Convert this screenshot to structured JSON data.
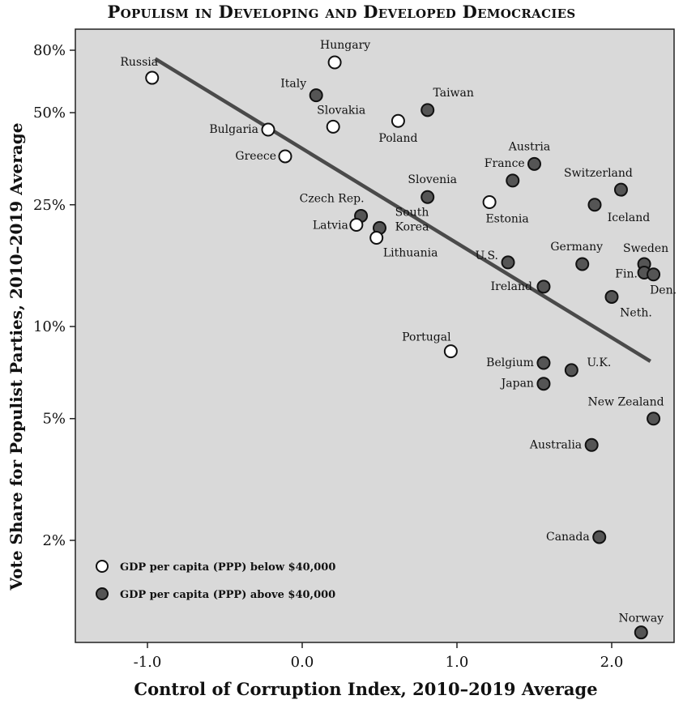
{
  "chart_data": {
    "type": "scatter",
    "title": "Populism in Developing and Developed Democracies",
    "xlabel": "Control of Corruption Index, 2010–2019 Average",
    "ylabel": "Vote Share for Populist Parties, 2010–2019 Average",
    "x_ticks": [
      {
        "value": -1.0,
        "label": "-1.0"
      },
      {
        "value": 0.0,
        "label": "0.0"
      },
      {
        "value": 1.0,
        "label": "1.0"
      },
      {
        "value": 2.0,
        "label": "2.0"
      }
    ],
    "y_scale": "log",
    "y_ticks": [
      {
        "value": 2,
        "label": "2%"
      },
      {
        "value": 5,
        "label": "5%"
      },
      {
        "value": 10,
        "label": "10%"
      },
      {
        "value": 25,
        "label": "25%"
      },
      {
        "value": 50,
        "label": "50%"
      },
      {
        "value": 80,
        "label": "80%"
      }
    ],
    "legend": [
      {
        "name": "GDP per capita (PPP) below $40,000",
        "color": "#ffffff"
      },
      {
        "name": "GDP per capita (PPP) above $40,000",
        "color": "#555555"
      }
    ],
    "legend_position": "bottom-left",
    "trend_line": {
      "x1": -0.95,
      "y1": 75,
      "x2": 2.25,
      "y2": 7.7
    },
    "points": [
      {
        "name": "Russia",
        "x": -0.97,
        "y": 65,
        "group": "below"
      },
      {
        "name": "Hungary",
        "x": 0.21,
        "y": 73,
        "group": "below"
      },
      {
        "name": "Italy",
        "x": 0.09,
        "y": 57,
        "group": "above"
      },
      {
        "name": "Taiwan",
        "x": 0.81,
        "y": 51,
        "group": "above"
      },
      {
        "name": "Slovakia",
        "x": 0.2,
        "y": 45,
        "group": "below"
      },
      {
        "name": "Bulgaria",
        "x": -0.22,
        "y": 44,
        "group": "below"
      },
      {
        "name": "Poland",
        "x": 0.62,
        "y": 47,
        "group": "below"
      },
      {
        "name": "Greece",
        "x": -0.11,
        "y": 36,
        "group": "below"
      },
      {
        "name": "Austria",
        "x": 1.5,
        "y": 34,
        "group": "above"
      },
      {
        "name": "France",
        "x": 1.36,
        "y": 30,
        "group": "above"
      },
      {
        "name": "Switzerland",
        "x": 2.06,
        "y": 28,
        "group": "above"
      },
      {
        "name": "Slovenia",
        "x": 0.81,
        "y": 26.5,
        "group": "above"
      },
      {
        "name": "Estonia",
        "x": 1.21,
        "y": 25.5,
        "group": "below"
      },
      {
        "name": "Iceland",
        "x": 1.89,
        "y": 25,
        "group": "above"
      },
      {
        "name": "Czech Rep.",
        "x": 0.38,
        "y": 23,
        "group": "above"
      },
      {
        "name": "South Korea",
        "x": 0.5,
        "y": 21,
        "group": "above"
      },
      {
        "name": "Latvia",
        "x": 0.35,
        "y": 21.5,
        "group": "below"
      },
      {
        "name": "Lithuania",
        "x": 0.48,
        "y": 19.5,
        "group": "below"
      },
      {
        "name": "U.S.",
        "x": 1.33,
        "y": 16.2,
        "group": "above"
      },
      {
        "name": "Germany",
        "x": 1.81,
        "y": 16,
        "group": "above"
      },
      {
        "name": "Sweden",
        "x": 2.21,
        "y": 16,
        "group": "above"
      },
      {
        "name": "Fin.",
        "x": 2.21,
        "y": 15,
        "group": "above"
      },
      {
        "name": "Den.",
        "x": 2.27,
        "y": 14.8,
        "group": "above"
      },
      {
        "name": "Ireland",
        "x": 1.56,
        "y": 13.5,
        "group": "above"
      },
      {
        "name": "Neth.",
        "x": 2.0,
        "y": 12.5,
        "group": "above"
      },
      {
        "name": "Portugal",
        "x": 0.96,
        "y": 8.3,
        "group": "below"
      },
      {
        "name": "Belgium",
        "x": 1.56,
        "y": 7.6,
        "group": "above"
      },
      {
        "name": "U.K.",
        "x": 1.74,
        "y": 7.2,
        "group": "above"
      },
      {
        "name": "Japan",
        "x": 1.56,
        "y": 6.5,
        "group": "above"
      },
      {
        "name": "New Zealand",
        "x": 2.27,
        "y": 5.0,
        "group": "above"
      },
      {
        "name": "Australia",
        "x": 1.87,
        "y": 4.1,
        "group": "above"
      },
      {
        "name": "Canada",
        "x": 1.92,
        "y": 2.05,
        "group": "above"
      },
      {
        "name": "Norway",
        "x": 2.19,
        "y": 1.0,
        "group": "above"
      }
    ]
  }
}
